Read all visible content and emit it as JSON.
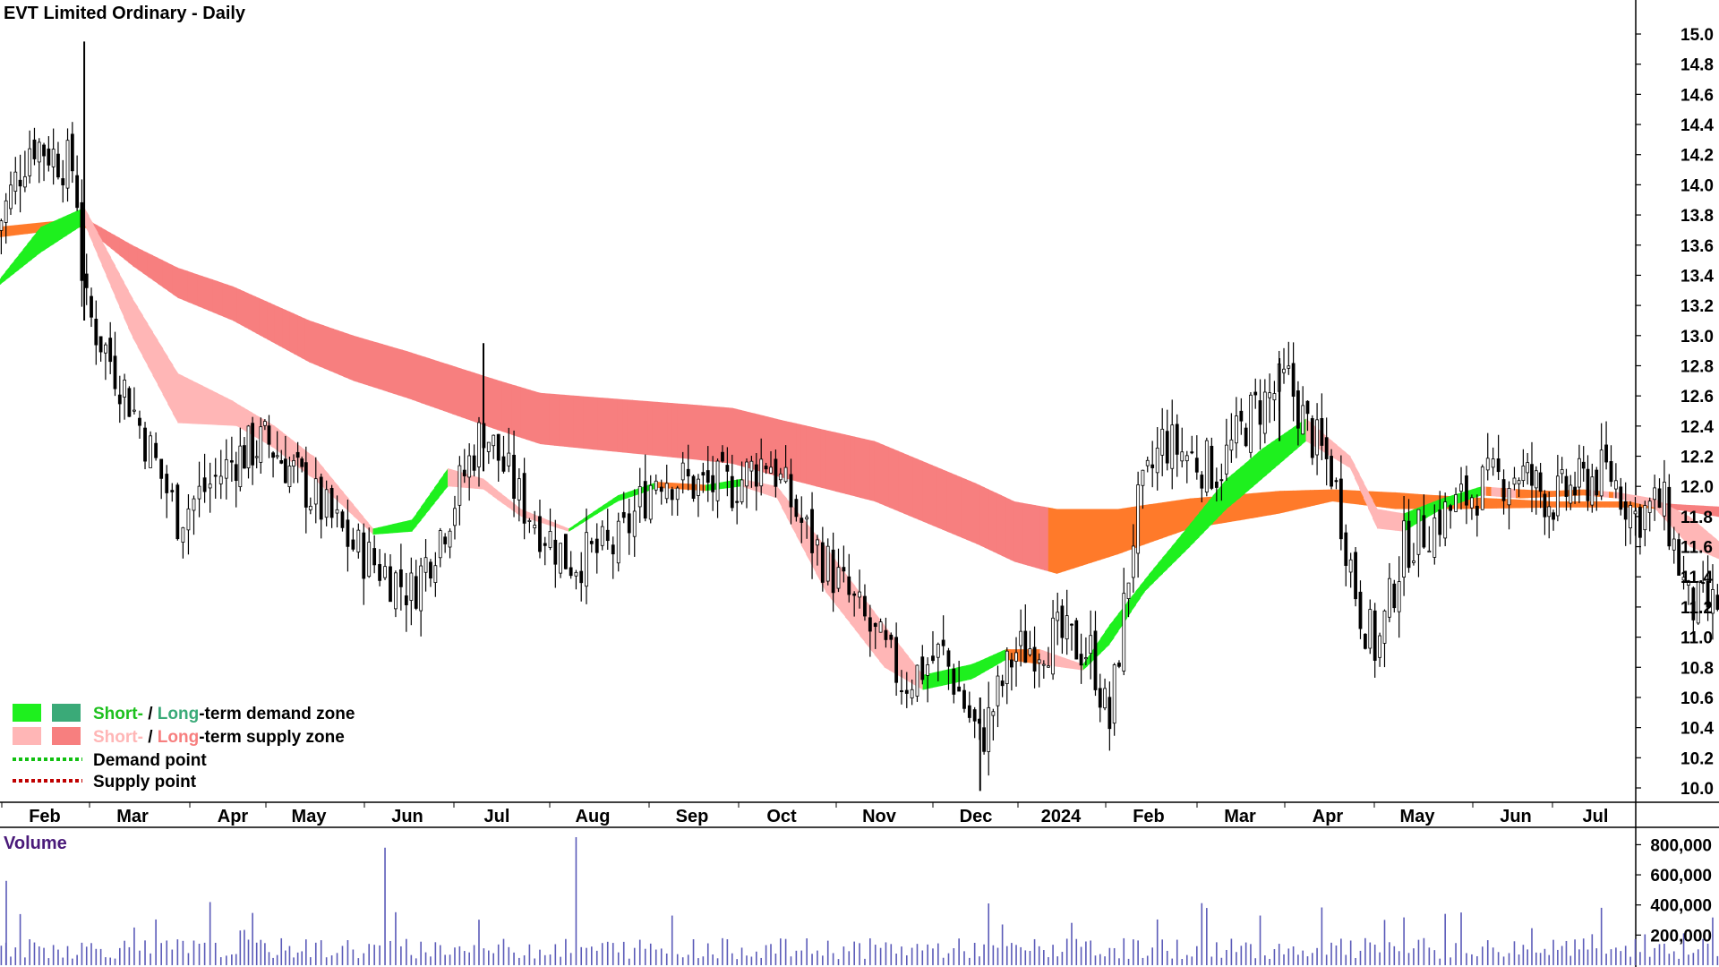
{
  "title": "EVT Limited Ordinary - Daily",
  "volume_label": "Volume",
  "colors": {
    "short_demand": "#1ef01e",
    "long_demand": "#3aaa78",
    "short_supply": "#ffb6b6",
    "long_supply": "#f77f7f",
    "neutral_band": "#ff7a2a",
    "demand_point": "#10c010",
    "supply_point": "#c00000",
    "volume_bar": "#5a5ab8",
    "candle": "#000000"
  },
  "legend": [
    {
      "key": "demand-zone",
      "short": "Short-",
      "sep": " / ",
      "long": "Long",
      "rest": "-term demand zone"
    },
    {
      "key": "supply-zone",
      "short": "Short-",
      "sep": " / ",
      "long": "Long",
      "rest": "-term supply zone"
    },
    {
      "key": "demand-point",
      "label": "Demand point"
    },
    {
      "key": "supply-point",
      "label": "Supply point"
    }
  ],
  "chart_data": {
    "type": "candlestick",
    "title": "EVT Limited Ordinary - Daily",
    "x_labels": [
      "Feb",
      "Mar",
      "Apr",
      "May",
      "Jun",
      "Jul",
      "Aug",
      "Sep",
      "Oct",
      "Nov",
      "Dec",
      "2024",
      "Feb",
      "Mar",
      "Apr",
      "May",
      "Jun",
      "Jul"
    ],
    "y_ticks": [
      "15.0",
      "14.8",
      "14.6",
      "14.4",
      "14.2",
      "14.0",
      "13.8",
      "13.6",
      "13.4",
      "13.2",
      "13.0",
      "12.8",
      "12.6",
      "12.4",
      "12.2",
      "12.0",
      "11.8",
      "11.6",
      "11.4",
      "11.2",
      "11.0",
      "10.8",
      "10.6",
      "10.4",
      "10.2",
      "10.0"
    ],
    "y_range": [
      9.9,
      15.1
    ],
    "volume_ticks": [
      "800,000",
      "600,000",
      "400,000",
      "200,000"
    ],
    "volume_range": [
      0,
      850000
    ],
    "price_path": [
      {
        "month": 0,
        "close": 13.7
      },
      {
        "month": 0.4,
        "close": 14.3
      },
      {
        "month": 0.9,
        "close": 14.1
      },
      {
        "month": 1.0,
        "close": 13.2
      },
      {
        "month": 1.5,
        "close": 12.6
      },
      {
        "month": 2.0,
        "close": 11.8
      },
      {
        "month": 2.6,
        "close": 12.2
      },
      {
        "month": 3.0,
        "close": 12.3
      },
      {
        "month": 3.5,
        "close": 12.0
      },
      {
        "month": 4.0,
        "close": 11.6
      },
      {
        "month": 4.6,
        "close": 11.3
      },
      {
        "month": 5.0,
        "close": 11.8
      },
      {
        "month": 5.4,
        "close": 12.4
      },
      {
        "month": 5.8,
        "close": 11.9
      },
      {
        "month": 6.3,
        "close": 11.5
      },
      {
        "month": 6.8,
        "close": 11.6
      },
      {
        "month": 7.2,
        "close": 12.1
      },
      {
        "month": 7.6,
        "close": 12.0
      },
      {
        "month": 8.0,
        "close": 12.0
      },
      {
        "month": 8.4,
        "close": 12.2
      },
      {
        "month": 8.8,
        "close": 11.7
      },
      {
        "month": 9.3,
        "close": 11.2
      },
      {
        "month": 9.8,
        "close": 10.7
      },
      {
        "month": 10.2,
        "close": 10.9
      },
      {
        "month": 10.6,
        "close": 10.3
      },
      {
        "month": 11.0,
        "close": 10.9
      },
      {
        "month": 11.5,
        "close": 11.0
      },
      {
        "month": 11.9,
        "close": 10.9
      },
      {
        "month": 12.1,
        "close": 10.4
      },
      {
        "month": 12.4,
        "close": 11.8
      },
      {
        "month": 12.7,
        "close": 12.3
      },
      {
        "month": 13.0,
        "close": 12.2
      },
      {
        "month": 13.3,
        "close": 12.1
      },
      {
        "month": 13.7,
        "close": 12.5
      },
      {
        "month": 14.1,
        "close": 12.7
      },
      {
        "month": 14.3,
        "close": 12.4
      },
      {
        "month": 14.6,
        "close": 12.1
      },
      {
        "month": 14.9,
        "close": 11.2
      },
      {
        "month": 15.1,
        "close": 10.9
      },
      {
        "month": 15.4,
        "close": 11.6
      },
      {
        "month": 15.8,
        "close": 11.8
      },
      {
        "month": 16.2,
        "close": 12.0
      },
      {
        "month": 16.6,
        "close": 12.1
      },
      {
        "month": 17.0,
        "close": 11.9
      },
      {
        "month": 17.3,
        "close": 12.0
      },
      {
        "month": 17.7,
        "close": 12.1
      },
      {
        "month": 18.0,
        "close": 11.8
      },
      {
        "month": 18.3,
        "close": 11.9
      },
      {
        "month": 18.6,
        "close": 11.2
      },
      {
        "month": 18.9,
        "close": 11.2
      },
      {
        "month": 19.1,
        "close": 11.5
      },
      {
        "month": 19.4,
        "close": 11.3
      }
    ],
    "long_term_band": {
      "upper": [
        [
          0,
          13.72
        ],
        [
          1.0,
          13.78
        ],
        [
          2.0,
          13.45
        ],
        [
          4.0,
          13.0
        ],
        [
          6.0,
          12.62
        ],
        [
          8.0,
          12.52
        ],
        [
          9.5,
          12.3
        ],
        [
          11.0,
          11.9
        ],
        [
          11.5,
          11.85
        ],
        [
          12.2,
          11.85
        ],
        [
          13.0,
          11.92
        ],
        [
          14.0,
          11.97
        ],
        [
          14.6,
          11.98
        ],
        [
          15.3,
          11.96
        ],
        [
          16.0,
          11.93
        ],
        [
          17.0,
          11.9
        ],
        [
          18.0,
          11.9
        ],
        [
          18.5,
          11.88
        ],
        [
          19.4,
          11.85
        ]
      ],
      "lower": [
        [
          0,
          13.65
        ],
        [
          1.0,
          13.72
        ],
        [
          2.0,
          13.25
        ],
        [
          4.0,
          12.7
        ],
        [
          6.0,
          12.28
        ],
        [
          8.0,
          12.15
        ],
        [
          9.5,
          11.9
        ],
        [
          11.0,
          11.5
        ],
        [
          11.5,
          11.42
        ],
        [
          12.2,
          11.55
        ],
        [
          13.0,
          11.72
        ],
        [
          14.0,
          11.82
        ],
        [
          14.6,
          11.9
        ],
        [
          15.3,
          11.85
        ],
        [
          16.0,
          11.85
        ],
        [
          17.0,
          11.86
        ],
        [
          18.0,
          11.86
        ],
        [
          18.5,
          11.84
        ],
        [
          19.4,
          11.75
        ]
      ]
    },
    "short_term_band": {
      "upper": [
        [
          0,
          13.35
        ],
        [
          0.5,
          13.72
        ],
        [
          1.0,
          13.85
        ],
        [
          1.5,
          13.3
        ],
        [
          2.0,
          12.75
        ],
        [
          2.6,
          12.55
        ],
        [
          3.1,
          12.4
        ],
        [
          3.6,
          12.2
        ],
        [
          4.2,
          11.72
        ],
        [
          4.6,
          11.78
        ],
        [
          5.0,
          12.12
        ],
        [
          5.4,
          12.05
        ],
        [
          5.8,
          11.85
        ],
        [
          6.3,
          11.72
        ],
        [
          6.8,
          11.94
        ],
        [
          7.2,
          12.03
        ],
        [
          7.7,
          12.01
        ],
        [
          8.1,
          12.05
        ],
        [
          8.5,
          12.0
        ],
        [
          9.0,
          11.6
        ],
        [
          9.6,
          11.08
        ],
        [
          10.0,
          10.75
        ],
        [
          10.5,
          10.82
        ],
        [
          10.9,
          10.92
        ],
        [
          11.3,
          10.92
        ],
        [
          11.8,
          10.82
        ],
        [
          12.1,
          11.08
        ],
        [
          12.5,
          11.38
        ],
        [
          13.0,
          11.75
        ],
        [
          13.4,
          12.05
        ],
        [
          13.8,
          12.25
        ],
        [
          14.3,
          12.45
        ],
        [
          14.8,
          12.2
        ],
        [
          15.1,
          11.85
        ],
        [
          15.4,
          11.82
        ],
        [
          15.8,
          11.92
        ],
        [
          16.2,
          12.0
        ],
        [
          16.6,
          11.98
        ],
        [
          17.0,
          11.97
        ],
        [
          17.4,
          11.98
        ],
        [
          17.8,
          11.96
        ],
        [
          18.2,
          11.92
        ],
        [
          18.6,
          11.8
        ],
        [
          19.0,
          11.6
        ],
        [
          19.4,
          11.52
        ]
      ],
      "lower": [
        [
          0,
          13.32
        ],
        [
          0.5,
          13.55
        ],
        [
          1.0,
          13.74
        ],
        [
          1.5,
          13.05
        ],
        [
          2.0,
          12.42
        ],
        [
          2.6,
          12.4
        ],
        [
          3.1,
          12.25
        ],
        [
          3.6,
          12.05
        ],
        [
          4.2,
          11.68
        ],
        [
          4.6,
          11.7
        ],
        [
          5.0,
          12.0
        ],
        [
          5.4,
          11.98
        ],
        [
          5.8,
          11.8
        ],
        [
          6.3,
          11.7
        ],
        [
          6.8,
          11.9
        ],
        [
          7.2,
          11.99
        ],
        [
          7.7,
          11.97
        ],
        [
          8.1,
          12.0
        ],
        [
          8.5,
          11.92
        ],
        [
          9.0,
          11.3
        ],
        [
          9.6,
          10.8
        ],
        [
          10.0,
          10.65
        ],
        [
          10.5,
          10.72
        ],
        [
          10.9,
          10.85
        ],
        [
          11.3,
          10.82
        ],
        [
          11.8,
          10.78
        ],
        [
          12.1,
          10.95
        ],
        [
          12.5,
          11.3
        ],
        [
          13.0,
          11.6
        ],
        [
          13.4,
          11.85
        ],
        [
          13.8,
          12.05
        ],
        [
          14.3,
          12.3
        ],
        [
          14.8,
          12.12
        ],
        [
          15.1,
          11.72
        ],
        [
          15.4,
          11.7
        ],
        [
          15.8,
          11.85
        ],
        [
          16.2,
          11.94
        ],
        [
          16.6,
          11.92
        ],
        [
          17.0,
          11.93
        ],
        [
          17.4,
          11.94
        ],
        [
          17.8,
          11.92
        ],
        [
          18.2,
          11.86
        ],
        [
          18.6,
          11.6
        ],
        [
          19.0,
          11.5
        ],
        [
          19.4,
          11.48
        ]
      ]
    },
    "volume_spikes": [
      {
        "month": 4.3,
        "value": 780000
      },
      {
        "month": 6.4,
        "value": 850000
      },
      {
        "month": 13.2,
        "value": 380000
      },
      {
        "month": 16.0,
        "value": 350000
      }
    ]
  }
}
